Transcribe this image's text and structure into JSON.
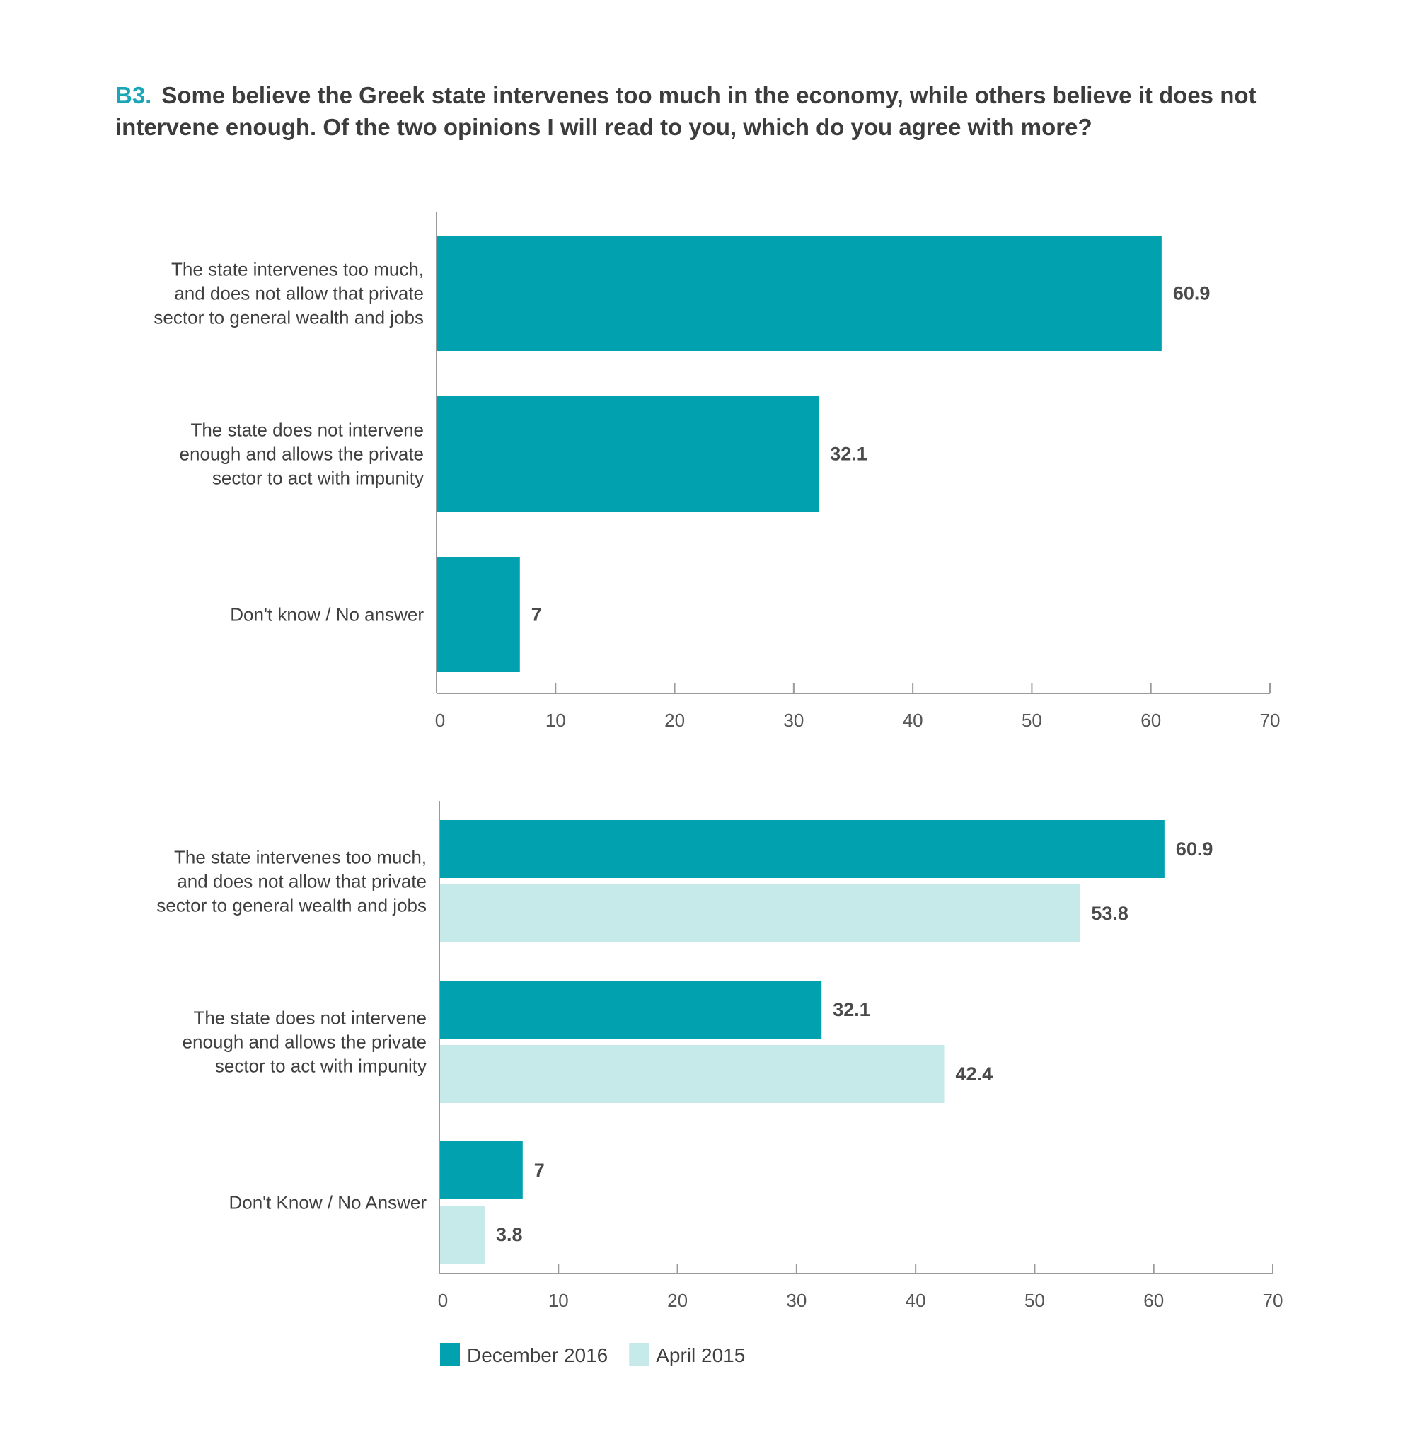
{
  "title": {
    "id": "B3.",
    "text": "Some believe the Greek state intervenes too much in the economy, while others believe it does not intervene enough. Of the two opinions I will read to you, which do you agree with more?"
  },
  "colors": {
    "accent": "#1aa6b7",
    "december_2016": "#01a1b0",
    "april_2015": "#c6eaea"
  },
  "chart_data": [
    {
      "type": "bar",
      "orientation": "horizontal",
      "categories": [
        [
          "The state intervenes too much,",
          "and does not allow that private",
          "sector to general wealth and jobs"
        ],
        [
          "The state does not intervene",
          "enough and allows the private",
          "sector to act with impunity"
        ],
        [
          "Don't know / No answer"
        ]
      ],
      "series": [
        {
          "values": [
            60.9,
            32.1,
            7
          ],
          "color": "#01a1b0"
        }
      ],
      "xlim": [
        0,
        70
      ],
      "xticks": [
        0,
        10,
        20,
        30,
        40,
        50,
        60,
        70
      ],
      "data_labels": true,
      "grid": false,
      "legend": false
    },
    {
      "type": "bar",
      "orientation": "horizontal",
      "categories": [
        [
          "The state intervenes too much,",
          "and does not allow that private",
          "sector to general wealth and jobs"
        ],
        [
          "The state does not intervene",
          "enough and allows the private",
          "sector to act with impunity"
        ],
        [
          "Don't Know / No Answer"
        ]
      ],
      "series": [
        {
          "name": "December 2016",
          "values": [
            60.9,
            32.1,
            7
          ],
          "color": "#01a1b0"
        },
        {
          "name": "April 2015",
          "values": [
            53.8,
            42.4,
            3.8
          ],
          "color": "#c6eaea"
        }
      ],
      "xlim": [
        0,
        70
      ],
      "xticks": [
        0,
        10,
        20,
        30,
        40,
        50,
        60,
        70
      ],
      "data_labels": true,
      "grid": false,
      "legend": "bottom-left"
    }
  ]
}
